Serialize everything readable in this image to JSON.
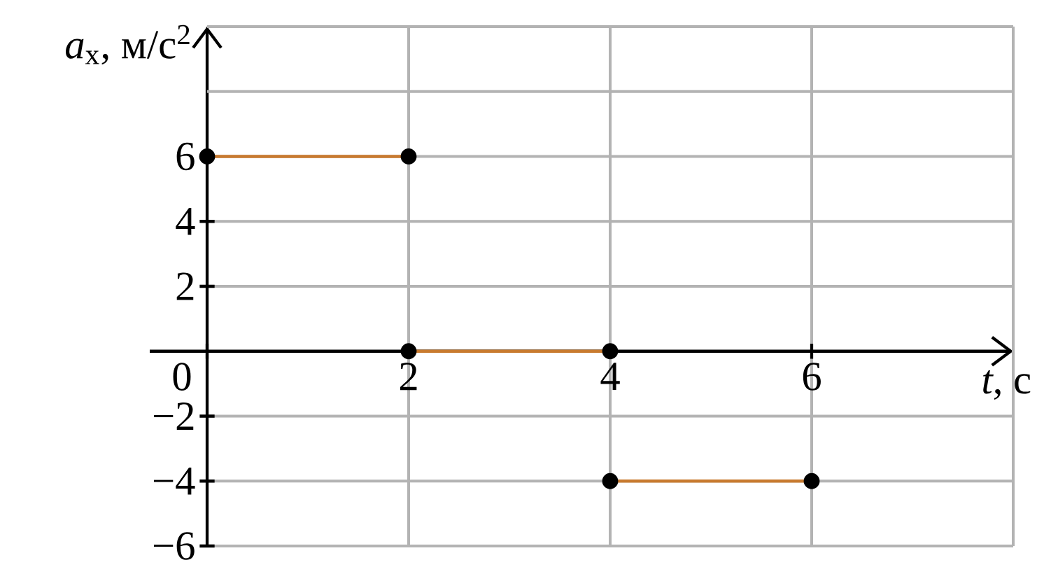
{
  "chart_data": {
    "type": "line",
    "xlabel": "*t*, с",
    "ylabel": "*a*$_{x}$, м/с$^{2}$",
    "xlim": [
      0,
      8
    ],
    "ylim": [
      -6,
      10
    ],
    "xticks": [
      0,
      2,
      4,
      6,
      {
        "value": 8,
        "label": null
      }
    ],
    "yticks": [
      {
        "value": -6,
        "label": "−6"
      },
      {
        "value": -4,
        "label": "−4"
      },
      {
        "value": -2,
        "label": "−2"
      },
      2,
      4,
      6,
      {
        "value": 8,
        "label": null
      },
      {
        "value": 10,
        "label": null
      }
    ],
    "grid": true,
    "marker": "circle",
    "line_style": "solid",
    "series": [
      {
        "color": "#c87a2f",
        "x": [
          0,
          2
        ],
        "values": [
          6,
          6
        ]
      },
      {
        "color": "#c87a2f",
        "x": [
          2,
          4
        ],
        "values": [
          0,
          0
        ]
      },
      {
        "color": "#c87a2f",
        "x": [
          4,
          6
        ],
        "values": [
          -4,
          -4
        ]
      }
    ]
  }
}
